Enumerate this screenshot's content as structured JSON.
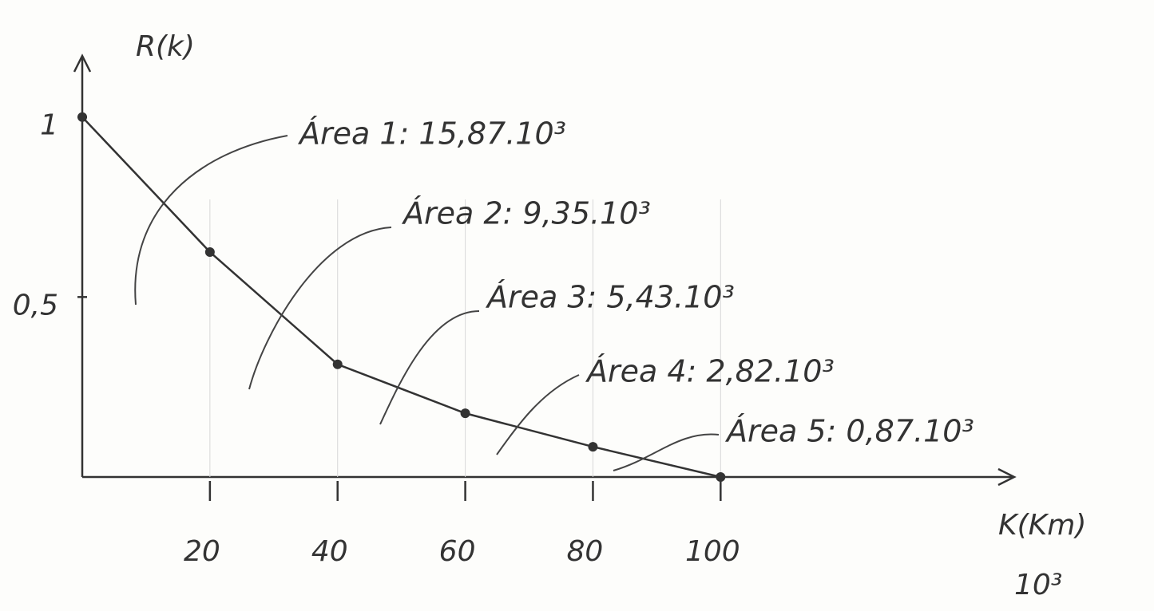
{
  "chart_data": {
    "type": "line",
    "y_label": "R(k)",
    "x_label": "K(Km)",
    "x_unit": "10³",
    "x": [
      0,
      20,
      40,
      60,
      80,
      100
    ],
    "values": [
      1,
      0.625,
      0.313,
      0.177,
      0.084,
      0
    ],
    "color": "#333333",
    "xlim": [
      0,
      146
    ],
    "ylim": [
      0,
      1.17
    ],
    "xticks": [
      20,
      40,
      60,
      80,
      100
    ],
    "yticks": [
      1,
      {
        "value": 0.5,
        "label": "0,5"
      }
    ],
    "annotations": [
      "Área 1: 15,87.10³",
      "Área 2: 9,35.10³",
      "Área 3: 5,43.10³",
      "Área 4: 2,82.10³",
      "Área 5: 0,87.10³"
    ]
  }
}
